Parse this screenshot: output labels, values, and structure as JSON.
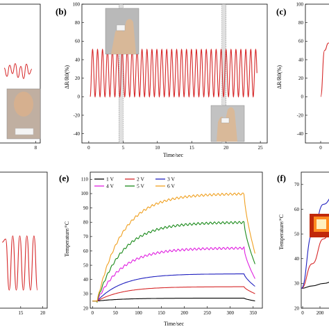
{
  "panels": {
    "a": {
      "label": ""
    },
    "b": {
      "label": "(b)"
    },
    "c": {
      "label": "(c)"
    },
    "d": {
      "label": ""
    },
    "e": {
      "label": "(e)"
    },
    "f": {
      "label": "(f)"
    }
  },
  "chart_data": [
    {
      "id": "a",
      "type": "line",
      "title": "",
      "xlabel": "",
      "ylabel": "",
      "x_ticks": [
        8
      ],
      "xlim": [
        0,
        9
      ],
      "series": [
        {
          "x": [
            1.2,
            1.8,
            2.4,
            3.0,
            3.6,
            4.2,
            4.8,
            5.4,
            6.0,
            6.6,
            7.2
          ],
          "values": [
            0.5,
            -1,
            1,
            -0.5,
            1.3,
            -1.2,
            0.8,
            -1.4,
            1.2,
            -0.6,
            0.3
          ],
          "color": "#d62728"
        }
      ]
    },
    {
      "id": "b",
      "type": "line",
      "title": "",
      "xlabel": "Time/sec",
      "ylabel": "ΔR/R0(%)",
      "xlim": [
        -1,
        26
      ],
      "ylim": [
        -50,
        100
      ],
      "x_ticks": [
        0,
        5,
        10,
        15,
        20,
        25
      ],
      "y_ticks": [
        -40,
        -20,
        0,
        20,
        40,
        60,
        80,
        100
      ],
      "shaded_regions": [
        [
          4.4,
          5.0
        ],
        [
          19.4,
          20.0
        ]
      ],
      "periodic_signal": {
        "period_s": 0.72,
        "peak": 51,
        "trough": 0,
        "start": 0.2,
        "end": 24.5
      },
      "series": [
        {
          "name": "",
          "color": "#d62728"
        }
      ]
    },
    {
      "id": "c",
      "type": "line",
      "title": "",
      "xlabel": "",
      "ylabel": "ΔR/R0(%)",
      "ylim": [
        -50,
        100
      ],
      "y_ticks": [
        -40,
        -20,
        0,
        20,
        40,
        60,
        80,
        100
      ],
      "x_ticks": [
        0
      ],
      "series": [
        {
          "x": [
            0,
            0.4,
            0.8,
            1.2
          ],
          "values": [
            0,
            50,
            58,
            57
          ],
          "color": "#d62728"
        }
      ]
    },
    {
      "id": "d",
      "type": "line",
      "title": "",
      "xlabel": "",
      "ylabel": "",
      "xlim": [
        10,
        21
      ],
      "x_ticks": [
        15,
        20
      ],
      "series": [
        {
          "x": [
            10.8,
            11.6,
            12.4,
            13.2,
            14.0,
            14.8,
            15.6,
            16.4,
            17.2,
            18.0,
            18.8
          ],
          "values": [
            0.5,
            0.6,
            -1,
            0.7,
            -1,
            0.7,
            -1,
            0.7,
            -1,
            0.7,
            -1
          ],
          "color": "#d62728"
        }
      ]
    },
    {
      "id": "e",
      "type": "line",
      "title": "",
      "xlabel": "Time/sec",
      "ylabel": "Temperature/°C",
      "xlim": [
        -5,
        370
      ],
      "ylim": [
        20,
        115
      ],
      "x_ticks": [
        0,
        50,
        100,
        150,
        200,
        250,
        300,
        350
      ],
      "y_ticks": [
        20,
        30,
        40,
        50,
        60,
        70,
        80,
        90,
        100,
        110
      ],
      "legend_position": "top-left",
      "series": [
        {
          "name": "1 V",
          "color": "#000000",
          "plateau": 27,
          "end_value": 25
        },
        {
          "name": "2 V",
          "color": "#d62728",
          "plateau": 35,
          "end_value": 30
        },
        {
          "name": "3 V",
          "color": "#1f1fbf",
          "plateau": 44,
          "end_value": 35
        },
        {
          "name": "4 V",
          "color": "#e020e0",
          "plateau": 62,
          "end_value": 40
        },
        {
          "name": "5 V",
          "color": "#1a8a1a",
          "plateau": 80,
          "end_value": 50
        },
        {
          "name": "6 V",
          "color": "#f0a020",
          "plateau": 100,
          "end_value": 57
        }
      ],
      "time_on": 10,
      "time_off": 330,
      "end_time": 355
    },
    {
      "id": "f",
      "type": "line",
      "title": "",
      "xlabel": "",
      "ylabel": "Temperature/°C",
      "ylim": [
        20,
        75
      ],
      "y_ticks": [
        20,
        30,
        40,
        50,
        60,
        70
      ],
      "x_ticks": [
        0,
        200
      ],
      "series": [
        {
          "name": "",
          "color": "#000000",
          "values": [
            28,
            29,
            30,
            31
          ]
        },
        {
          "name": "",
          "color": "#d62728",
          "values": [
            28,
            38,
            48,
            55
          ]
        },
        {
          "name": "",
          "color": "#1f1fbf",
          "values": [
            28,
            50,
            62,
            66
          ]
        }
      ]
    }
  ]
}
